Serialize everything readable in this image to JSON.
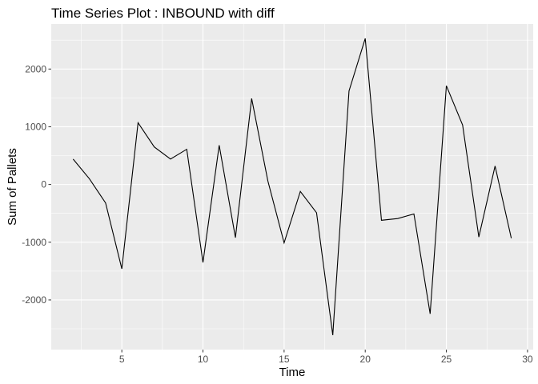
{
  "chart_data": {
    "type": "line",
    "title": "Time Series Plot : INBOUND with diff",
    "xlabel": "Time",
    "ylabel": "Sum of Pallets",
    "xlim": [
      0.65,
      30.35
    ],
    "ylim": [
      -2860,
      2780
    ],
    "x_ticks": [
      5,
      10,
      15,
      20,
      25,
      30
    ],
    "y_ticks": [
      -2000,
      -1000,
      0,
      1000,
      2000
    ],
    "grid": true,
    "legend": "none",
    "colors": {
      "panel_bg": "#ebebeb",
      "grid": "#ffffff",
      "line": "#000000"
    },
    "series": [
      {
        "x": [
          2,
          3,
          4,
          5,
          6,
          7,
          8,
          9,
          10,
          11,
          12,
          13,
          14,
          15,
          16,
          17,
          18,
          19,
          20,
          21,
          22,
          23,
          24,
          25,
          26,
          27,
          28,
          29
        ],
        "values": [
          440,
          100,
          -320,
          -1460,
          1070,
          650,
          440,
          610,
          -1350,
          680,
          -920,
          1490,
          60,
          -1010,
          -120,
          -490,
          -2610,
          1620,
          2530,
          -620,
          -590,
          -510,
          -2240,
          1710,
          1030,
          -910,
          320,
          -930
        ]
      }
    ]
  }
}
